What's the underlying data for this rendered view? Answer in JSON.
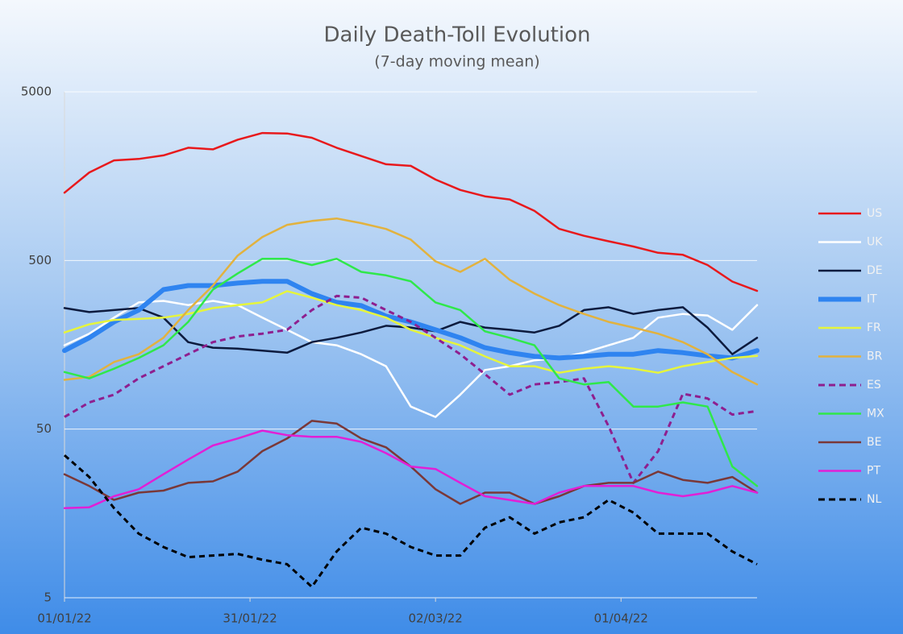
{
  "chart_data": {
    "type": "line",
    "title": "Daily Death-Toll Evolution",
    "subtitle": "(7-day moving mean)",
    "log_scale": true,
    "grid": true,
    "ylim": [
      5,
      5000
    ],
    "yticks": [
      5,
      50,
      500,
      5000
    ],
    "xticks": [
      "01/01/22",
      "31/01/22",
      "02/03/22",
      "01/04/22"
    ],
    "x": [
      "01/01/22",
      "05/01/22",
      "09/01/22",
      "13/01/22",
      "17/01/22",
      "21/01/22",
      "25/01/22",
      "29/01/22",
      "02/02/22",
      "06/02/22",
      "10/02/22",
      "14/02/22",
      "18/02/22",
      "22/02/22",
      "26/02/22",
      "02/03/22",
      "06/03/22",
      "10/03/22",
      "14/03/22",
      "18/03/22",
      "22/03/22",
      "26/03/22",
      "30/03/22",
      "03/04/22",
      "07/04/22",
      "11/04/22",
      "15/04/22",
      "19/04/22",
      "23/04/22"
    ],
    "series": [
      {
        "name": "US",
        "color": "#e8191c",
        "dashed": false,
        "thick": false,
        "values": [
          1262,
          1662,
          1960,
          2000,
          2100,
          2330,
          2280,
          2600,
          2850,
          2830,
          2670,
          2330,
          2080,
          1860,
          1820,
          1510,
          1310,
          1200,
          1150,
          985,
          770,
          700,
          650,
          605,
          555,
          540,
          470,
          375,
          330
        ]
      },
      {
        "name": "UK",
        "color": "#ffffff",
        "dashed": false,
        "thick": false,
        "values": [
          157,
          184,
          229,
          282,
          288,
          272,
          288,
          272,
          229,
          194,
          164,
          157,
          139,
          118,
          68,
          59,
          80,
          112,
          118,
          128,
          132,
          142,
          157,
          174,
          229,
          241,
          236,
          194,
          272
        ]
      },
      {
        "name": "DE",
        "color": "#0d1b3e",
        "dashed": false,
        "thick": false,
        "values": [
          261,
          247,
          254,
          261,
          229,
          164,
          152,
          150,
          146,
          142,
          164,
          174,
          187,
          205,
          200,
          190,
          216,
          200,
          194,
          187,
          205,
          254,
          264,
          241,
          254,
          264,
          200,
          139,
          174
        ]
      },
      {
        "name": "IT",
        "color": "#2f84f0",
        "dashed": false,
        "thick": true,
        "values": [
          146,
          174,
          216,
          254,
          336,
          355,
          355,
          367,
          376,
          376,
          318,
          282,
          270,
          234,
          216,
          194,
          174,
          152,
          142,
          135,
          132,
          135,
          139,
          139,
          146,
          142,
          136,
          132,
          146
        ]
      },
      {
        "name": "FR",
        "color": "#e6f53c",
        "dashed": false,
        "thick": false,
        "values": [
          187,
          209,
          222,
          225,
          229,
          241,
          261,
          272,
          282,
          329,
          301,
          272,
          254,
          229,
          194,
          174,
          157,
          135,
          118,
          118,
          108,
          114,
          118,
          114,
          108,
          118,
          125,
          132,
          136
        ]
      },
      {
        "name": "BR",
        "color": "#e2b23e",
        "dashed": false,
        "thick": false,
        "values": [
          98,
          102,
          125,
          139,
          174,
          254,
          355,
          535,
          689,
          813,
          857,
          887,
          832,
          769,
          665,
          494,
          428,
          512,
          384,
          318,
          272,
          241,
          216,
          200,
          184,
          164,
          139,
          109,
          92
        ]
      },
      {
        "name": "ES",
        "color": "#8e1f8f",
        "dashed": true,
        "thick": false,
        "values": [
          59,
          72,
          80,
          100,
          118,
          139,
          164,
          177,
          184,
          194,
          254,
          308,
          301,
          254,
          216,
          174,
          139,
          106,
          80,
          92,
          95,
          100,
          52,
          24,
          37,
          81,
          76,
          61,
          64
        ]
      },
      {
        "name": "MX",
        "color": "#2fe84a",
        "dashed": false,
        "thick": false,
        "values": [
          109,
          100,
          114,
          132,
          157,
          216,
          336,
          419,
          512,
          512,
          470,
          512,
          428,
          408,
          376,
          282,
          254,
          190,
          174,
          157,
          100,
          92,
          95,
          68,
          68,
          72,
          68,
          30,
          23
        ]
      },
      {
        "name": "BE",
        "color": "#7a3838",
        "dashed": false,
        "thick": false,
        "values": [
          27,
          23,
          19,
          21,
          21.6,
          24,
          24.5,
          28,
          37,
          44,
          56,
          54,
          44,
          39,
          30,
          22,
          18,
          21,
          21,
          18,
          20,
          23,
          24,
          24,
          28,
          25,
          24,
          26,
          21
        ]
      },
      {
        "name": "PT",
        "color": "#e21fd6",
        "dashed": false,
        "thick": false,
        "values": [
          17,
          17.2,
          20,
          22,
          27,
          33,
          40,
          44,
          49,
          46,
          45,
          45,
          42,
          36,
          30,
          29,
          24,
          20,
          19,
          18,
          21,
          23,
          23,
          23,
          21,
          20,
          21,
          23,
          21
        ]
      },
      {
        "name": "NL",
        "color": "#000000",
        "dashed": true,
        "thick": false,
        "values": [
          35,
          26,
          17,
          12,
          10,
          8.7,
          8.9,
          9.1,
          8.4,
          7.9,
          5.8,
          9.4,
          13,
          12,
          10,
          8.9,
          8.9,
          13,
          15,
          12,
          14,
          15,
          19,
          16,
          12,
          12,
          12,
          9.4,
          7.9
        ]
      }
    ]
  }
}
